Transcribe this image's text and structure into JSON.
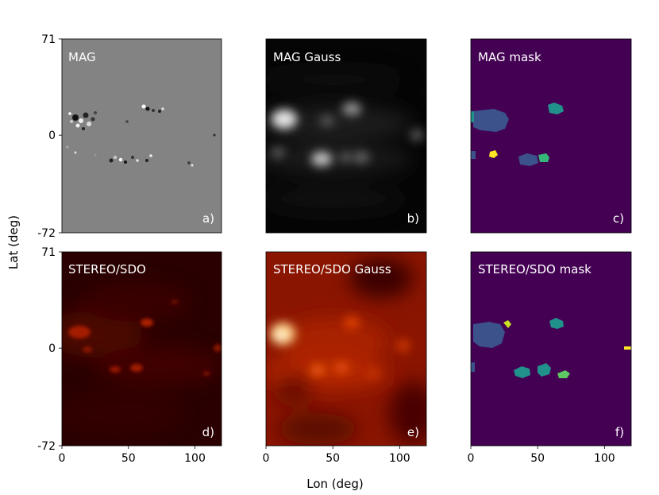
{
  "figure": {
    "xlabel": "Lon (deg)",
    "ylabel": "Lat (deg)",
    "colors": {
      "mag_background": "#838383",
      "gauss_background": "#050505",
      "mask_background": "#440154",
      "stereo_background": "#2a0000",
      "stereo_gauss_background": "#8a1500",
      "mask_region_large": "#3b528b",
      "mask_region_teal": "#21918c",
      "mask_region_green": "#35b779",
      "mask_region_yellow": "#fde725"
    }
  },
  "chart_data": [
    {
      "type": "heatmap",
      "panel": "MAG",
      "title": "MAG",
      "tag": "a)",
      "xlim": [
        0,
        120
      ],
      "ylim": [
        -72,
        71
      ],
      "yticks": [
        71,
        0,
        -72
      ],
      "xticks": []
    },
    {
      "type": "heatmap",
      "panel": "MAG Gauss",
      "title": "MAG Gauss",
      "tag": "b)",
      "xlim": [
        0,
        120
      ],
      "ylim": [
        -72,
        71
      ],
      "yticks": [],
      "xticks": []
    },
    {
      "type": "heatmap",
      "panel": "MAG mask",
      "title": "MAG mask",
      "tag": "c)",
      "xlim": [
        0,
        120
      ],
      "ylim": [
        -72,
        71
      ],
      "yticks": [],
      "xticks": []
    },
    {
      "type": "heatmap",
      "panel": "STEREO/SDO",
      "title": "STEREO/SDO",
      "tag": "d)",
      "xlim": [
        0,
        120
      ],
      "ylim": [
        -72,
        71
      ],
      "yticks": [
        71,
        0,
        -72
      ],
      "xticks": [
        0,
        50,
        100
      ]
    },
    {
      "type": "heatmap",
      "panel": "STEREO/SDO Gauss",
      "title": "STEREO/SDO Gauss",
      "tag": "e)",
      "xlim": [
        0,
        120
      ],
      "ylim": [
        -72,
        71
      ],
      "yticks": [],
      "xticks": [
        0,
        50,
        100
      ]
    },
    {
      "type": "heatmap",
      "panel": "STEREO/SDO mask",
      "title": "STEREO/SDO mask",
      "tag": "f)",
      "xlim": [
        0,
        120
      ],
      "ylim": [
        -72,
        71
      ],
      "yticks": [],
      "xticks": [
        0,
        50,
        100
      ]
    }
  ]
}
